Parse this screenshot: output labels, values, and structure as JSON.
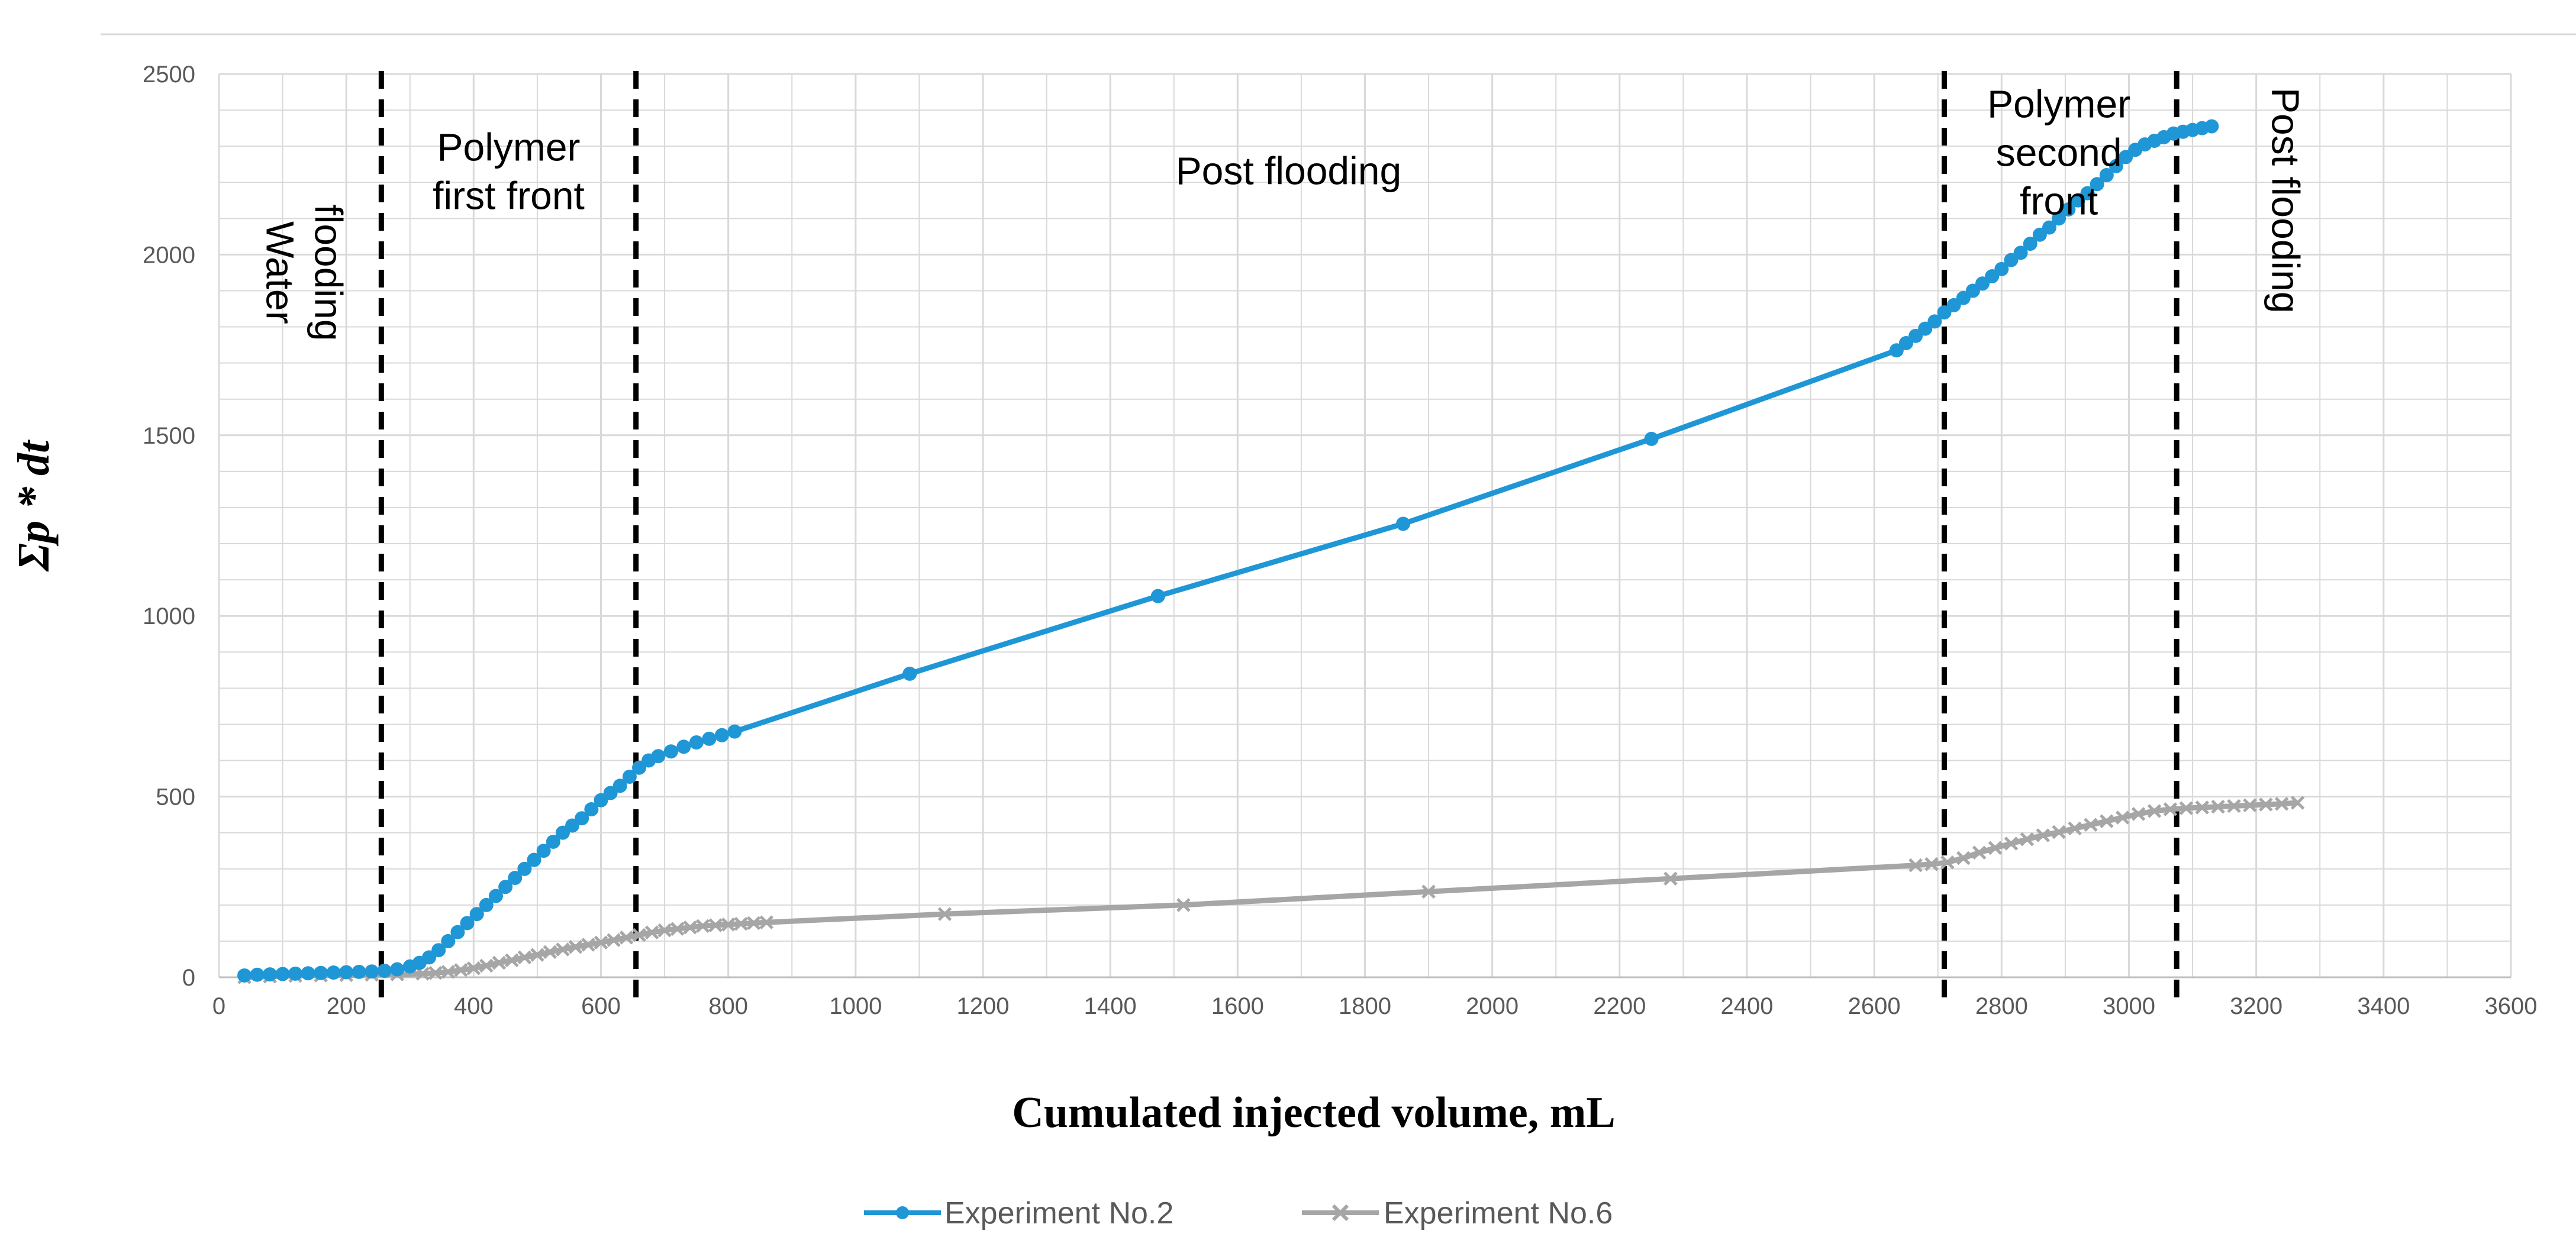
{
  "chart_data": {
    "type": "line",
    "title": "",
    "xlabel": "Cumulated injected volume, mL",
    "ylabel": "Σp * dt",
    "xlim": [
      0,
      3600
    ],
    "ylim": [
      0,
      2500
    ],
    "xticks": [
      0,
      200,
      400,
      600,
      800,
      1000,
      1200,
      1400,
      1600,
      1800,
      2000,
      2200,
      2400,
      2600,
      2800,
      3000,
      3200,
      3400,
      3600
    ],
    "yticks": [
      0,
      500,
      1000,
      1500,
      2000,
      2500
    ],
    "grid": true,
    "legend_position": "bottom",
    "colors": {
      "exp2": "#1f97d6",
      "exp6": "#a6a6a6",
      "grid": "#d9d9d9",
      "divider": "#000000"
    },
    "series": [
      {
        "name": "Experiment No.2",
        "marker": "circle",
        "x": [
          40,
          60,
          80,
          100,
          120,
          140,
          160,
          180,
          200,
          220,
          240,
          260,
          280,
          300,
          315,
          330,
          345,
          360,
          375,
          390,
          405,
          420,
          435,
          450,
          465,
          480,
          495,
          510,
          525,
          540,
          555,
          570,
          585,
          600,
          615,
          630,
          645,
          660,
          675,
          690,
          710,
          730,
          750,
          770,
          790,
          810,
          1085,
          1475,
          1860,
          2250,
          2635,
          2650,
          2665,
          2680,
          2695,
          2710,
          2725,
          2740,
          2755,
          2770,
          2785,
          2800,
          2815,
          2830,
          2845,
          2860,
          2875,
          2890,
          2905,
          2920,
          2935,
          2950,
          2965,
          2980,
          2995,
          3010,
          3025,
          3040,
          3055,
          3070,
          3085,
          3100,
          3115,
          3130
        ],
        "y": [
          5,
          7,
          8,
          9,
          10,
          11,
          12,
          13,
          14,
          15,
          16,
          18,
          22,
          30,
          40,
          55,
          75,
          100,
          125,
          150,
          175,
          200,
          225,
          250,
          275,
          300,
          325,
          350,
          375,
          400,
          420,
          440,
          465,
          490,
          510,
          530,
          555,
          580,
          600,
          612,
          625,
          638,
          650,
          660,
          670,
          680,
          840,
          1055,
          1255,
          1490,
          1735,
          1755,
          1775,
          1795,
          1815,
          1840,
          1860,
          1880,
          1900,
          1920,
          1940,
          1960,
          1985,
          2005,
          2030,
          2055,
          2075,
          2100,
          2125,
          2150,
          2170,
          2195,
          2220,
          2245,
          2270,
          2290,
          2305,
          2315,
          2325,
          2335,
          2340,
          2345,
          2350,
          2355
        ]
      },
      {
        "name": "Experiment No.6",
        "marker": "x",
        "x": [
          40,
          80,
          120,
          160,
          200,
          240,
          280,
          320,
          340,
          360,
          380,
          400,
          420,
          440,
          460,
          480,
          500,
          520,
          540,
          560,
          580,
          600,
          620,
          640,
          660,
          680,
          700,
          720,
          740,
          760,
          780,
          800,
          820,
          840,
          860,
          1140,
          1515,
          1900,
          2280,
          2665,
          2690,
          2715,
          2740,
          2765,
          2790,
          2815,
          2840,
          2865,
          2890,
          2915,
          2940,
          2965,
          2990,
          3015,
          3040,
          3065,
          3090,
          3115,
          3140,
          3165,
          3190,
          3215,
          3240,
          3265
        ],
        "y": [
          0,
          2,
          4,
          5,
          6,
          7,
          8,
          10,
          12,
          15,
          20,
          25,
          32,
          40,
          47,
          55,
          62,
          70,
          77,
          84,
          90,
          96,
          103,
          110,
          117,
          124,
          130,
          134,
          138,
          142,
          144,
          146,
          148,
          150,
          152,
          175,
          200,
          237,
          273,
          310,
          313,
          318,
          330,
          345,
          358,
          370,
          382,
          393,
          402,
          412,
          422,
          432,
          442,
          452,
          460,
          465,
          468,
          470,
          472,
          474,
          476,
          478,
          480,
          483
        ]
      }
    ],
    "vertical_lines": [
      255,
      655,
      2710,
      3075
    ],
    "region_labels": [
      {
        "lines": [
          "Water",
          "flooding"
        ],
        "x": 75,
        "y": 1950,
        "rotated": true
      },
      {
        "lines": [
          "Polymer",
          "first front"
        ],
        "x": 455,
        "y": 2260,
        "rotated": false
      },
      {
        "lines": [
          "Post flooding"
        ],
        "x": 1680,
        "y": 2195,
        "rotated": false
      },
      {
        "lines": [
          "Polymer",
          "second",
          "front"
        ],
        "x": 2890,
        "y": 2380,
        "rotated": false
      },
      {
        "lines": [
          "Post flooding"
        ],
        "x": 3225,
        "y": 2150,
        "rotated": true
      }
    ]
  }
}
